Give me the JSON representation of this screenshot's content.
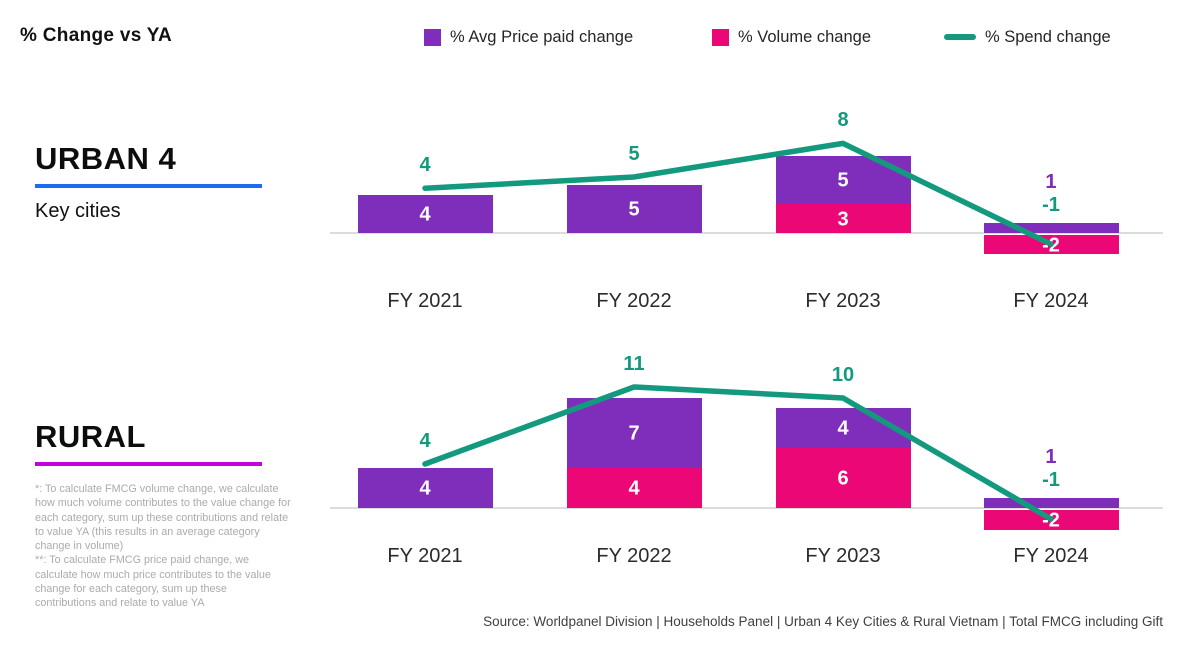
{
  "header": {
    "title": "% Change vs YA"
  },
  "legend": {
    "items": [
      {
        "label": "% Avg Price paid change",
        "color": "#7f2dbb",
        "swatch": "square"
      },
      {
        "label": "% Volume change",
        "color": "#ec0777",
        "swatch": "square"
      },
      {
        "label": "% Spend change",
        "color": "#13997e",
        "swatch": "line"
      }
    ]
  },
  "sections": [
    {
      "title": "URBAN 4",
      "subtitle": "Key cities",
      "underline_color": "#1b6cf2"
    },
    {
      "title": "RURAL",
      "subtitle": "",
      "underline_color": "#c203dc"
    }
  ],
  "footnotes": [
    "*: To calculate FMCG volume change, we calculate how much volume contributes to the value change for each category, sum up these contributions and relate to value YA (this results in an average category change in volume)",
    "**: To calculate FMCG price paid change, we calculate how much price contributes to the value change for each category, sum up these contributions and relate to value YA"
  ],
  "source": "Source: Worldpanel Division | Households Panel | Urban 4 Key Cities & Rural Vietnam | Total FMCG including Gift",
  "chart_data": [
    {
      "type": "bar",
      "title": "URBAN 4 (Key cities) % Change vs YA",
      "categories": [
        "FY 2021",
        "FY 2022",
        "FY 2023",
        "FY 2024"
      ],
      "series": [
        {
          "name": "% Avg Price paid change",
          "color": "#7f2dbb",
          "values": [
            4,
            5,
            5,
            1
          ]
        },
        {
          "name": "% Volume change",
          "color": "#ec0777",
          "values": [
            0,
            0,
            3,
            -2
          ]
        }
      ],
      "line_series": {
        "name": "% Spend change",
        "color": "#13997e",
        "values": [
          4,
          5,
          8,
          -1
        ]
      },
      "stacked": true,
      "ylim": [
        -3,
        10
      ],
      "grid": false,
      "legend_position": "top"
    },
    {
      "type": "bar",
      "title": "RURAL % Change vs YA",
      "categories": [
        "FY 2021",
        "FY 2022",
        "FY 2023",
        "FY 2024"
      ],
      "series": [
        {
          "name": "% Avg Price paid change",
          "color": "#7f2dbb",
          "values": [
            4,
            7,
            4,
            1
          ]
        },
        {
          "name": "% Volume change",
          "color": "#ec0777",
          "values": [
            0,
            4,
            6,
            -2
          ]
        }
      ],
      "line_series": {
        "name": "% Spend change",
        "color": "#13997e",
        "values": [
          4,
          11,
          10,
          -1
        ]
      },
      "stacked": true,
      "ylim": [
        -3,
        12
      ],
      "grid": false,
      "legend_position": "top"
    }
  ]
}
